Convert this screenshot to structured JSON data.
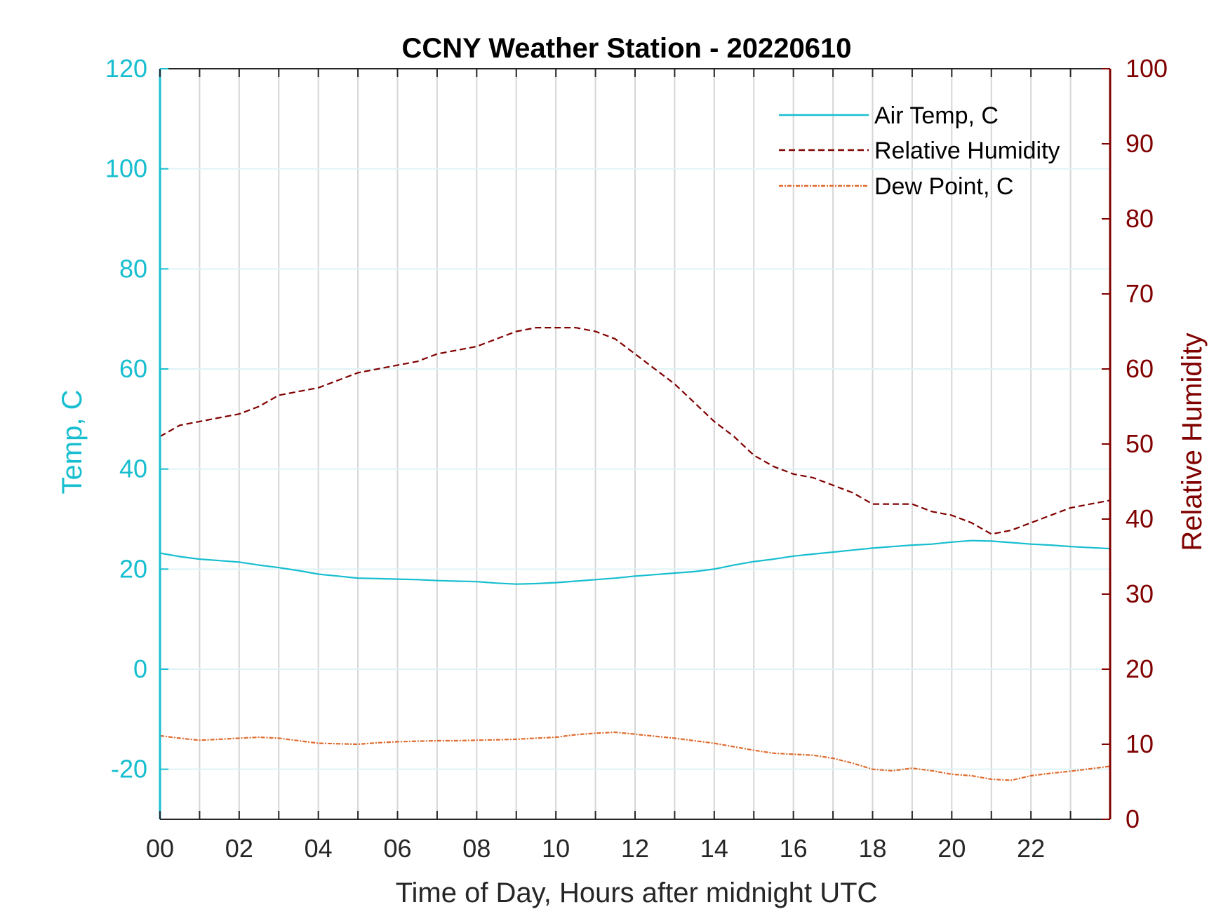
{
  "chart_data": {
    "type": "line",
    "title": "CCNY Weather Station - 20220610",
    "xlabel": "Time of Day, Hours after midnight UTC",
    "ylabel_left": "Temp, C",
    "ylabel_right": "Relative Humidity",
    "xlim": [
      0,
      24
    ],
    "ylim_left": [
      -30,
      120
    ],
    "ylim_right": [
      0,
      100
    ],
    "x_ticks": [
      0,
      2,
      4,
      6,
      8,
      10,
      12,
      14,
      16,
      18,
      20,
      22
    ],
    "x_tick_labels": [
      "00",
      "02",
      "04",
      "06",
      "08",
      "10",
      "12",
      "14",
      "16",
      "18",
      "20",
      "22"
    ],
    "y_left_ticks": [
      -20,
      0,
      20,
      40,
      60,
      80,
      100,
      120
    ],
    "y_right_ticks": [
      0,
      10,
      20,
      30,
      40,
      50,
      60,
      70,
      80,
      90,
      100
    ],
    "grid": true,
    "legend_position": "top-right",
    "colors": {
      "left_axis": "#17becf",
      "right_axis": "#800000",
      "air_temp": "#17becf",
      "relative_humidity": "#800000",
      "dew_point": "#e06a2c"
    },
    "series": [
      {
        "name": "Air Temp, C",
        "axis": "left",
        "style": "solid",
        "x": [
          0,
          0.5,
          1,
          1.5,
          2,
          2.5,
          3,
          3.5,
          4,
          4.5,
          5,
          5.5,
          6,
          6.5,
          7,
          7.5,
          8,
          8.5,
          9,
          9.5,
          10,
          10.5,
          11,
          11.5,
          12,
          12.5,
          13,
          13.5,
          14,
          14.5,
          15,
          15.5,
          16,
          16.5,
          17,
          17.5,
          18,
          18.5,
          19,
          19.5,
          20,
          20.5,
          21,
          21.5,
          22,
          22.5,
          23,
          23.5,
          24
        ],
        "y": [
          23.2,
          22.5,
          22.0,
          21.7,
          21.4,
          20.8,
          20.3,
          19.7,
          19.0,
          18.6,
          18.2,
          18.1,
          18.0,
          17.9,
          17.7,
          17.6,
          17.5,
          17.2,
          17.0,
          17.1,
          17.3,
          17.6,
          17.9,
          18.2,
          18.6,
          18.9,
          19.2,
          19.5,
          20.0,
          20.8,
          21.5,
          22.0,
          22.6,
          23.0,
          23.4,
          23.8,
          24.2,
          24.5,
          24.8,
          25.0,
          25.4,
          25.7,
          25.6,
          25.3,
          25.0,
          24.8,
          24.5,
          24.3,
          24.1
        ]
      },
      {
        "name": "Relative Humidity",
        "axis": "right",
        "style": "dashed",
        "x": [
          0,
          0.5,
          1,
          1.5,
          2,
          2.5,
          3,
          3.5,
          4,
          4.5,
          5,
          5.5,
          6,
          6.5,
          7,
          7.5,
          8,
          8.5,
          9,
          9.5,
          10,
          10.5,
          11,
          11.5,
          12,
          12.5,
          13,
          13.5,
          14,
          14.5,
          15,
          15.5,
          16,
          16.5,
          17,
          17.5,
          18,
          18.5,
          19,
          19.5,
          20,
          20.5,
          21,
          21.5,
          22,
          22.5,
          23,
          23.5,
          24
        ],
        "y": [
          51,
          52.5,
          53,
          53.5,
          54,
          55,
          56.5,
          57,
          57.5,
          58.5,
          59.5,
          60,
          60.5,
          61,
          62,
          62.5,
          63,
          64,
          65,
          65.5,
          65.5,
          65.5,
          65,
          64,
          62,
          60,
          58,
          55.5,
          53,
          51,
          48.5,
          47,
          46,
          45.5,
          44.5,
          43.5,
          42,
          42,
          42,
          41,
          40.5,
          39.5,
          38,
          38.5,
          39.5,
          40.5,
          41.5,
          42,
          42.5
        ]
      },
      {
        "name": "Dew Point, C",
        "axis": "left",
        "style": "dash-dot",
        "x": [
          0,
          0.5,
          1,
          1.5,
          2,
          2.5,
          3,
          3.5,
          4,
          4.5,
          5,
          5.5,
          6,
          6.5,
          7,
          7.5,
          8,
          8.5,
          9,
          9.5,
          10,
          10.5,
          11,
          11.5,
          12,
          12.5,
          13,
          13.5,
          14,
          14.5,
          15,
          15.5,
          16,
          16.5,
          17,
          17.5,
          18,
          18.5,
          19,
          19.5,
          20,
          20.5,
          21,
          21.5,
          22,
          22.5,
          23,
          23.5,
          24
        ],
        "y": [
          -13.3,
          -13.8,
          -14.2,
          -14,
          -13.8,
          -13.6,
          -13.8,
          -14.3,
          -14.8,
          -14.9,
          -15,
          -14.7,
          -14.5,
          -14.4,
          -14.3,
          -14.3,
          -14.2,
          -14.1,
          -14,
          -13.8,
          -13.6,
          -13.1,
          -12.8,
          -12.6,
          -13,
          -13.4,
          -13.8,
          -14.3,
          -14.8,
          -15.5,
          -16.2,
          -16.8,
          -17,
          -17.2,
          -17.8,
          -18.8,
          -20,
          -20.3,
          -19.8,
          -20.3,
          -21,
          -21.3,
          -22,
          -22.2,
          -21.3,
          -20.8,
          -20.4,
          -19.9,
          -19.4
        ]
      }
    ],
    "legend": [
      {
        "label": "Air Temp, C"
      },
      {
        "label": "Relative Humidity"
      },
      {
        "label": "Dew Point, C"
      }
    ]
  }
}
